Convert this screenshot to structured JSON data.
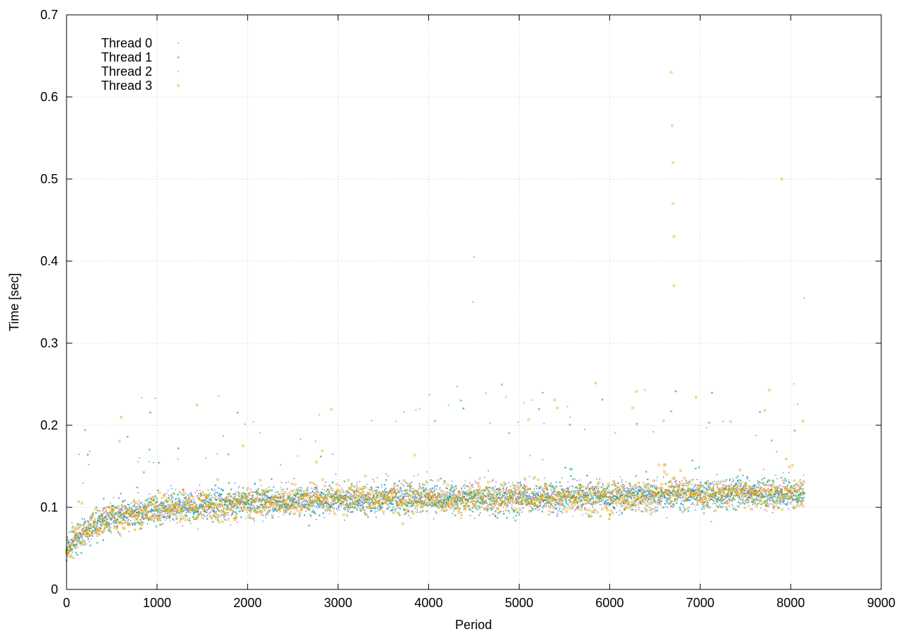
{
  "chart_data": {
    "type": "scatter",
    "title": "",
    "xlabel": "Period",
    "ylabel": "Time [sec]",
    "xlim": [
      0,
      9000
    ],
    "ylim": [
      0,
      0.7
    ],
    "xticks": [
      0,
      1000,
      2000,
      3000,
      4000,
      5000,
      6000,
      7000,
      8000,
      9000
    ],
    "yticks": [
      0,
      0.1,
      0.2,
      0.3,
      0.4,
      0.5,
      0.6,
      0.7
    ],
    "xtick_labels": [
      "0",
      "1000",
      "2000",
      "3000",
      "4000",
      "5000",
      "6000",
      "7000",
      "8000",
      "9000"
    ],
    "ytick_labels": [
      "0",
      "0.1",
      "0.2",
      "0.3",
      "0.4",
      "0.5",
      "0.6",
      "0.7"
    ],
    "grid": true,
    "legend_position": "top-left",
    "series": [
      {
        "name": "Thread 0",
        "color": "#9400d3",
        "marker": "dot",
        "x": [
          0,
          100,
          250,
          400,
          600,
          800,
          1000,
          1200,
          1500,
          1800,
          2000,
          2200,
          2500,
          2800,
          3000,
          3300,
          3600,
          4000,
          4300,
          4500,
          4800,
          5000,
          5300,
          5600,
          5900,
          6200,
          6500,
          6700,
          7000,
          7300,
          7600,
          7900,
          8150
        ],
        "y": [
          0.05,
          0.065,
          0.075,
          0.085,
          0.09,
          0.095,
          0.098,
          0.1,
          0.102,
          0.105,
          0.106,
          0.107,
          0.108,
          0.109,
          0.11,
          0.11,
          0.111,
          0.111,
          0.112,
          0.113,
          0.112,
          0.112,
          0.113,
          0.113,
          0.114,
          0.114,
          0.115,
          0.116,
          0.116,
          0.117,
          0.117,
          0.117,
          0.118
        ]
      },
      {
        "name": "Thread 1",
        "color": "#009e73",
        "marker": "x",
        "x": [
          0,
          100,
          250,
          400,
          600,
          800,
          1000,
          1200,
          1500,
          1800,
          2000,
          2200,
          2500,
          2800,
          3000,
          3300,
          3600,
          4000,
          4300,
          4500,
          4800,
          5000,
          5300,
          5600,
          5900,
          6200,
          6500,
          6700,
          7000,
          7300,
          7600,
          7900,
          8150
        ],
        "y": [
          0.048,
          0.063,
          0.074,
          0.084,
          0.09,
          0.094,
          0.097,
          0.099,
          0.101,
          0.104,
          0.105,
          0.106,
          0.107,
          0.108,
          0.109,
          0.109,
          0.11,
          0.11,
          0.111,
          0.112,
          0.111,
          0.111,
          0.112,
          0.112,
          0.113,
          0.113,
          0.114,
          0.115,
          0.115,
          0.116,
          0.116,
          0.116,
          0.117
        ]
      },
      {
        "name": "Thread 2",
        "color": "#56b4e9",
        "marker": "plus",
        "x": [
          0,
          100,
          250,
          400,
          600,
          800,
          1000,
          1200,
          1500,
          1800,
          2000,
          2200,
          2500,
          2800,
          3000,
          3300,
          3600,
          4000,
          4300,
          4500,
          4800,
          5000,
          5300,
          5600,
          5900,
          6200,
          6500,
          6700,
          7000,
          7300,
          7600,
          7900,
          8150
        ],
        "y": [
          0.049,
          0.064,
          0.074,
          0.084,
          0.089,
          0.094,
          0.097,
          0.1,
          0.102,
          0.104,
          0.106,
          0.106,
          0.107,
          0.108,
          0.11,
          0.11,
          0.111,
          0.111,
          0.112,
          0.112,
          0.112,
          0.112,
          0.113,
          0.113,
          0.113,
          0.114,
          0.115,
          0.116,
          0.116,
          0.116,
          0.117,
          0.117,
          0.118
        ]
      },
      {
        "name": "Thread 3",
        "color": "#e69f00",
        "marker": "circle",
        "x": [
          0,
          100,
          250,
          400,
          600,
          800,
          1000,
          1200,
          1500,
          1800,
          2000,
          2200,
          2500,
          2800,
          3000,
          3300,
          3600,
          4000,
          4300,
          4500,
          4800,
          5000,
          5300,
          5600,
          5900,
          6200,
          6500,
          6700,
          7000,
          7300,
          7600,
          7900,
          8150
        ],
        "y": [
          0.047,
          0.062,
          0.073,
          0.083,
          0.089,
          0.093,
          0.096,
          0.099,
          0.101,
          0.104,
          0.105,
          0.106,
          0.107,
          0.108,
          0.109,
          0.11,
          0.11,
          0.11,
          0.111,
          0.112,
          0.111,
          0.112,
          0.112,
          0.112,
          0.113,
          0.113,
          0.114,
          0.12,
          0.115,
          0.116,
          0.116,
          0.117,
          0.117
        ]
      }
    ],
    "annotations": [
      {
        "series": "Thread 3",
        "x": 6680,
        "y": 0.63
      },
      {
        "series": "Thread 3",
        "x": 6690,
        "y": 0.565
      },
      {
        "series": "Thread 3",
        "x": 6700,
        "y": 0.52
      },
      {
        "series": "Thread 3",
        "x": 6700,
        "y": 0.47
      },
      {
        "series": "Thread 3",
        "x": 6710,
        "y": 0.43
      },
      {
        "series": "Thread 3",
        "x": 6710,
        "y": 0.37
      },
      {
        "series": "Thread 0",
        "x": 4500,
        "y": 0.405
      },
      {
        "series": "Thread 0",
        "x": 4490,
        "y": 0.35
      },
      {
        "series": "Thread 3",
        "x": 7900,
        "y": 0.5
      },
      {
        "series": "Thread 2",
        "x": 8150,
        "y": 0.355
      }
    ]
  }
}
